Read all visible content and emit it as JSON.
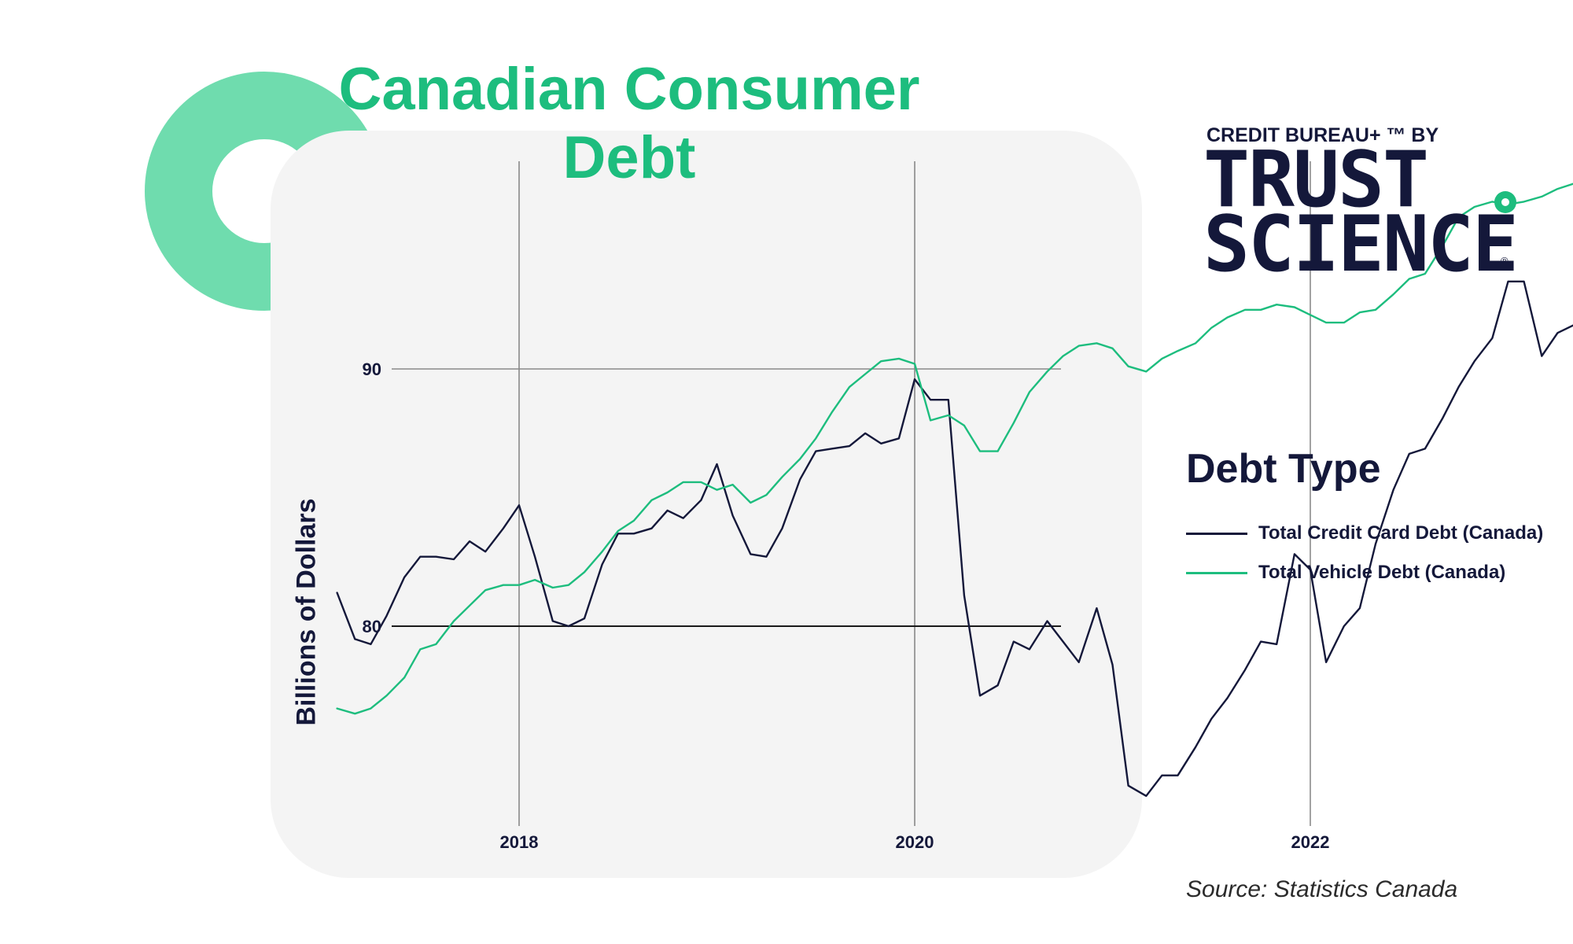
{
  "title": "Canadian Consumer Debt",
  "brand": {
    "top_line": "CREDIT BUREAU+ ™ BY",
    "line1": "TRUST",
    "line2": "SCIENCE",
    "reg": "®"
  },
  "legend": {
    "title": "Debt Type",
    "items": [
      {
        "label": "Total Credit Card Debt (Canada)",
        "color": "#14183a"
      },
      {
        "label": "Total Vehicle Debt (Canada)",
        "color": "#1dbd7e"
      }
    ]
  },
  "source": "Source: Statistics Canada",
  "colors": {
    "accent": "#1dbd7e",
    "ring": "#6fdcae",
    "navy": "#14183a",
    "panel": "#f4f4f4"
  },
  "chart_data": {
    "type": "line",
    "ylabel": "Billions of Dollars",
    "xlabel": "",
    "x_ticks": [
      2018,
      2020,
      2022
    ],
    "y_ticks": [
      80,
      90
    ],
    "xlim": [
      2017.0,
      2023.4
    ],
    "ylim": [
      72.3,
      100.3
    ],
    "grid": true,
    "legend_position": "right",
    "series": [
      {
        "name": "Total Credit Card Debt (Canada)",
        "color": "#14183a",
        "end_marker": true,
        "points": [
          [
            2017.08,
            81.3
          ],
          [
            2017.17,
            79.5
          ],
          [
            2017.25,
            79.3
          ],
          [
            2017.33,
            80.4
          ],
          [
            2017.42,
            81.9
          ],
          [
            2017.5,
            82.7
          ],
          [
            2017.58,
            82.7
          ],
          [
            2017.67,
            82.6
          ],
          [
            2017.75,
            83.3
          ],
          [
            2017.83,
            82.9
          ],
          [
            2017.92,
            83.8
          ],
          [
            2018.0,
            84.7
          ],
          [
            2018.08,
            82.7
          ],
          [
            2018.17,
            80.2
          ],
          [
            2018.25,
            80.0
          ],
          [
            2018.33,
            80.3
          ],
          [
            2018.42,
            82.4
          ],
          [
            2018.5,
            83.6
          ],
          [
            2018.58,
            83.6
          ],
          [
            2018.67,
            83.8
          ],
          [
            2018.75,
            84.5
          ],
          [
            2018.83,
            84.2
          ],
          [
            2018.92,
            84.9
          ],
          [
            2019.0,
            86.3
          ],
          [
            2019.08,
            84.3
          ],
          [
            2019.17,
            82.8
          ],
          [
            2019.25,
            82.7
          ],
          [
            2019.33,
            83.8
          ],
          [
            2019.42,
            85.7
          ],
          [
            2019.5,
            86.8
          ],
          [
            2019.58,
            86.9
          ],
          [
            2019.67,
            87.0
          ],
          [
            2019.75,
            87.5
          ],
          [
            2019.83,
            87.1
          ],
          [
            2019.92,
            87.3
          ],
          [
            2020.0,
            89.6
          ],
          [
            2020.08,
            88.8
          ],
          [
            2020.17,
            88.8
          ],
          [
            2020.25,
            81.2
          ],
          [
            2020.33,
            77.3
          ],
          [
            2020.42,
            77.7
          ],
          [
            2020.5,
            79.4
          ],
          [
            2020.58,
            79.1
          ],
          [
            2020.67,
            80.2
          ],
          [
            2020.75,
            79.4
          ],
          [
            2020.83,
            78.6
          ],
          [
            2020.92,
            80.7
          ],
          [
            2021.0,
            78.5
          ],
          [
            2021.08,
            73.8
          ],
          [
            2021.17,
            73.4
          ],
          [
            2021.25,
            74.2
          ],
          [
            2021.33,
            74.2
          ],
          [
            2021.42,
            75.3
          ],
          [
            2021.5,
            76.4
          ],
          [
            2021.58,
            77.2
          ],
          [
            2021.67,
            78.3
          ],
          [
            2021.75,
            79.4
          ],
          [
            2021.83,
            79.3
          ],
          [
            2021.92,
            82.8
          ],
          [
            2022.0,
            82.2
          ],
          [
            2022.08,
            78.6
          ],
          [
            2022.17,
            80.0
          ],
          [
            2022.25,
            80.7
          ],
          [
            2022.33,
            83.2
          ],
          [
            2022.42,
            85.3
          ],
          [
            2022.5,
            86.7
          ],
          [
            2022.58,
            86.9
          ],
          [
            2022.67,
            88.1
          ],
          [
            2022.75,
            89.3
          ],
          [
            2022.83,
            90.3
          ],
          [
            2022.92,
            91.2
          ],
          [
            2023.0,
            93.4
          ],
          [
            2023.08,
            93.4
          ],
          [
            2023.17,
            90.5
          ],
          [
            2023.25,
            91.4
          ],
          [
            2023.33,
            91.7
          ]
        ]
      },
      {
        "name": "Total Vehicle Debt (Canada)",
        "color": "#1dbd7e",
        "end_marker": true,
        "points": [
          [
            2017.08,
            76.8
          ],
          [
            2017.17,
            76.6
          ],
          [
            2017.25,
            76.8
          ],
          [
            2017.33,
            77.3
          ],
          [
            2017.42,
            78.0
          ],
          [
            2017.5,
            79.1
          ],
          [
            2017.58,
            79.3
          ],
          [
            2017.67,
            80.2
          ],
          [
            2017.75,
            80.8
          ],
          [
            2017.83,
            81.4
          ],
          [
            2017.92,
            81.6
          ],
          [
            2018.0,
            81.6
          ],
          [
            2018.08,
            81.8
          ],
          [
            2018.17,
            81.5
          ],
          [
            2018.25,
            81.6
          ],
          [
            2018.33,
            82.1
          ],
          [
            2018.42,
            82.9
          ],
          [
            2018.5,
            83.7
          ],
          [
            2018.58,
            84.1
          ],
          [
            2018.67,
            84.9
          ],
          [
            2018.75,
            85.2
          ],
          [
            2018.83,
            85.6
          ],
          [
            2018.92,
            85.6
          ],
          [
            2019.0,
            85.3
          ],
          [
            2019.08,
            85.5
          ],
          [
            2019.17,
            84.8
          ],
          [
            2019.25,
            85.1
          ],
          [
            2019.33,
            85.8
          ],
          [
            2019.42,
            86.5
          ],
          [
            2019.5,
            87.3
          ],
          [
            2019.58,
            88.3
          ],
          [
            2019.67,
            89.3
          ],
          [
            2019.75,
            89.8
          ],
          [
            2019.83,
            90.3
          ],
          [
            2019.92,
            90.4
          ],
          [
            2020.0,
            90.2
          ],
          [
            2020.08,
            88.0
          ],
          [
            2020.17,
            88.2
          ],
          [
            2020.25,
            87.8
          ],
          [
            2020.33,
            86.8
          ],
          [
            2020.42,
            86.8
          ],
          [
            2020.5,
            87.9
          ],
          [
            2020.58,
            89.1
          ],
          [
            2020.67,
            89.9
          ],
          [
            2020.75,
            90.5
          ],
          [
            2020.83,
            90.9
          ],
          [
            2020.92,
            91.0
          ],
          [
            2021.0,
            90.8
          ],
          [
            2021.08,
            90.1
          ],
          [
            2021.17,
            89.9
          ],
          [
            2021.25,
            90.4
          ],
          [
            2021.33,
            90.7
          ],
          [
            2021.42,
            91.0
          ],
          [
            2021.5,
            91.6
          ],
          [
            2021.58,
            92.0
          ],
          [
            2021.67,
            92.3
          ],
          [
            2021.75,
            92.3
          ],
          [
            2021.83,
            92.5
          ],
          [
            2021.92,
            92.4
          ],
          [
            2022.0,
            92.1
          ],
          [
            2022.08,
            91.8
          ],
          [
            2022.17,
            91.8
          ],
          [
            2022.25,
            92.2
          ],
          [
            2022.33,
            92.3
          ],
          [
            2022.42,
            92.9
          ],
          [
            2022.5,
            93.5
          ],
          [
            2022.58,
            93.7
          ],
          [
            2022.67,
            94.8
          ],
          [
            2022.75,
            95.9
          ],
          [
            2022.83,
            96.3
          ],
          [
            2022.92,
            96.5
          ],
          [
            2023.0,
            96.4
          ],
          [
            2023.08,
            96.5
          ],
          [
            2023.17,
            96.7
          ],
          [
            2023.25,
            97.0
          ],
          [
            2023.33,
            97.2
          ]
        ]
      }
    ]
  }
}
